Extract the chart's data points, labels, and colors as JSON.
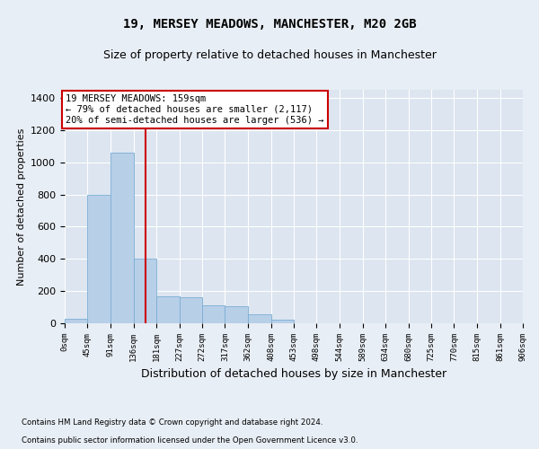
{
  "title1": "19, MERSEY MEADOWS, MANCHESTER, M20 2GB",
  "title2": "Size of property relative to detached houses in Manchester",
  "xlabel": "Distribution of detached houses by size in Manchester",
  "ylabel": "Number of detached properties",
  "bar_values": [
    30,
    800,
    1060,
    400,
    170,
    160,
    110,
    105,
    55,
    25,
    0,
    0,
    0,
    0,
    0,
    0,
    0,
    0,
    0,
    0
  ],
  "bin_edges": [
    0,
    45,
    91,
    136,
    181,
    227,
    272,
    317,
    362,
    408,
    453,
    498,
    544,
    589,
    634,
    680,
    725,
    770,
    815,
    861,
    906
  ],
  "bar_color": "#b8cfe8",
  "bar_edgecolor": "#7aadd4",
  "vline_x": 159,
  "vline_color": "#cc0000",
  "annotation_text": "19 MERSEY MEADOWS: 159sqm\n← 79% of detached houses are smaller (2,117)\n20% of semi-detached houses are larger (536) →",
  "annotation_box_facecolor": "#ffffff",
  "annotation_box_edgecolor": "#cc0000",
  "ylim": [
    0,
    1450
  ],
  "yticks": [
    0,
    200,
    400,
    600,
    800,
    1000,
    1200,
    1400
  ],
  "fig_bg_color": "#e8eef5",
  "plot_bg_color": "#dce5f0",
  "grid_color": "#ffffff",
  "footer1": "Contains HM Land Registry data © Crown copyright and database right 2024.",
  "footer2": "Contains public sector information licensed under the Open Government Licence v3.0.",
  "title1_fontsize": 10,
  "title2_fontsize": 9,
  "ylabel_fontsize": 8,
  "xlabel_fontsize": 9
}
